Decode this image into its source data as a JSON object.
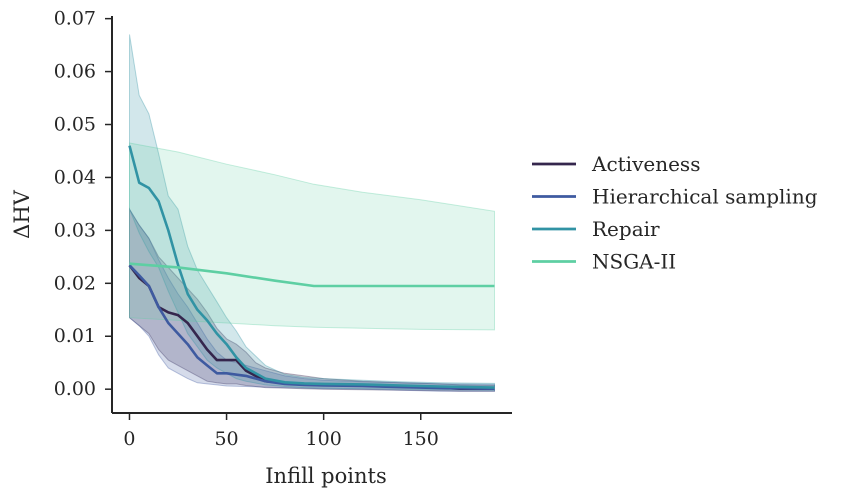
{
  "chart_data": {
    "type": "line",
    "xlabel": "Infill points",
    "ylabel": "ΔHV",
    "xlim": [
      -9,
      197
    ],
    "ylim": [
      -0.0045,
      0.0705
    ],
    "xticks": [
      0,
      50,
      100,
      150
    ],
    "yticks": [
      0.0,
      0.01,
      0.02,
      0.03,
      0.04,
      0.05,
      0.06,
      0.07
    ],
    "xtick_labels": [
      "0",
      "50",
      "100",
      "150"
    ],
    "ytick_labels": [
      "0.00",
      "0.01",
      "0.02",
      "0.03",
      "0.04",
      "0.05",
      "0.06",
      "0.07"
    ],
    "grid": false,
    "legend_position": "right, outside",
    "series": [
      {
        "name": "Activeness",
        "color": "#35264d",
        "x": [
          0,
          5,
          10,
          15,
          20,
          25,
          30,
          35,
          40,
          45,
          50,
          55,
          60,
          65,
          70,
          80,
          90,
          100,
          120,
          140,
          160,
          170,
          188
        ],
        "y": [
          0.0234,
          0.021,
          0.0195,
          0.0155,
          0.0145,
          0.014,
          0.0125,
          0.01,
          0.0075,
          0.0055,
          0.0055,
          0.0055,
          0.0035,
          0.0025,
          0.0015,
          0.0012,
          0.001,
          0.0008,
          0.0007,
          0.0005,
          0.0003,
          0.0001,
          0.0001
        ],
        "lower": [
          0.0135,
          0.012,
          0.0105,
          0.0075,
          0.0055,
          0.0045,
          0.0035,
          0.0025,
          0.0015,
          0.0012,
          0.001,
          0.001,
          0.0007,
          0.0005,
          0.0003,
          0.0002,
          0.0001,
          0.0,
          -0.0001,
          -0.0002,
          -0.0003,
          -0.0004,
          -0.0004
        ],
        "upper": [
          0.034,
          0.031,
          0.0285,
          0.025,
          0.023,
          0.021,
          0.019,
          0.017,
          0.0145,
          0.0115,
          0.0095,
          0.0085,
          0.007,
          0.005,
          0.004,
          0.003,
          0.0025,
          0.002,
          0.0015,
          0.0012,
          0.001,
          0.0008,
          0.0007
        ]
      },
      {
        "name": "Hierarchical sampling",
        "color": "#3e5aa0",
        "x": [
          0,
          5,
          10,
          15,
          20,
          25,
          30,
          35,
          40,
          45,
          50,
          60,
          70,
          80,
          90,
          100,
          120,
          140,
          160,
          188
        ],
        "y": [
          0.0234,
          0.0215,
          0.0195,
          0.0155,
          0.0125,
          0.0105,
          0.0085,
          0.006,
          0.0045,
          0.003,
          0.003,
          0.0025,
          0.0015,
          0.001,
          0.0008,
          0.0007,
          0.0006,
          0.0004,
          0.0002,
          0.0001
        ],
        "lower": [
          0.0135,
          0.012,
          0.01,
          0.0065,
          0.004,
          0.003,
          0.002,
          0.0012,
          0.001,
          0.0008,
          0.0006,
          0.0005,
          0.0004,
          0.0003,
          0.0002,
          0.0001,
          0.0,
          -0.0002,
          -0.0004,
          -0.0004
        ],
        "upper": [
          0.034,
          0.031,
          0.0285,
          0.0245,
          0.021,
          0.018,
          0.0155,
          0.0125,
          0.0095,
          0.007,
          0.0055,
          0.0045,
          0.0035,
          0.0025,
          0.002,
          0.0017,
          0.0014,
          0.0012,
          0.001,
          0.0009
        ]
      },
      {
        "name": "Repair",
        "color": "#3193a4",
        "x": [
          0,
          5,
          10,
          15,
          20,
          25,
          30,
          35,
          40,
          45,
          50,
          55,
          60,
          70,
          80,
          90,
          100,
          120,
          140,
          160,
          188
        ],
        "y": [
          0.046,
          0.039,
          0.038,
          0.0355,
          0.03,
          0.0235,
          0.018,
          0.015,
          0.013,
          0.0105,
          0.0085,
          0.006,
          0.004,
          0.002,
          0.0013,
          0.0011,
          0.001,
          0.0009,
          0.0007,
          0.0005,
          0.0003
        ],
        "lower": [
          0.034,
          0.0295,
          0.026,
          0.023,
          0.0185,
          0.0145,
          0.0105,
          0.008,
          0.0055,
          0.004,
          0.003,
          0.002,
          0.0015,
          0.0008,
          0.0005,
          0.0003,
          0.0002,
          0.0001,
          0.0,
          -0.0001,
          -0.0002
        ],
        "upper": [
          0.067,
          0.0555,
          0.052,
          0.0445,
          0.0365,
          0.034,
          0.027,
          0.0225,
          0.0195,
          0.0165,
          0.0135,
          0.011,
          0.008,
          0.0045,
          0.0028,
          0.0022,
          0.002,
          0.0017,
          0.0014,
          0.0012,
          0.0011
        ]
      },
      {
        "name": "NSGA-II",
        "color": "#5ecfa3",
        "x": [
          0,
          25,
          50,
          75,
          95,
          120,
          150,
          188
        ],
        "y": [
          0.0237,
          0.023,
          0.0219,
          0.0205,
          0.0195,
          0.0195,
          0.0195,
          0.0195
        ],
        "lower": [
          0.0135,
          0.013,
          0.0125,
          0.012,
          0.0117,
          0.0115,
          0.0113,
          0.0112
        ],
        "upper": [
          0.0465,
          0.0448,
          0.0425,
          0.0405,
          0.0387,
          0.0372,
          0.0358,
          0.0336
        ]
      }
    ]
  }
}
